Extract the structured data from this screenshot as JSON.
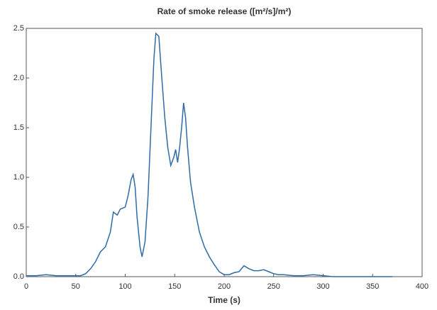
{
  "chart_data": {
    "type": "line",
    "title": "Rate of smoke release ([m²/s]/m²)",
    "x_label": "Time (s)",
    "x": [
      0,
      10,
      20,
      30,
      40,
      50,
      55,
      60,
      65,
      70,
      75,
      80,
      85,
      88,
      92,
      95,
      100,
      103,
      106,
      108,
      110,
      112,
      115,
      117,
      120,
      123,
      126,
      129,
      131,
      134,
      137,
      140,
      143,
      146,
      149,
      151,
      153,
      155,
      157,
      159,
      161,
      163,
      166,
      170,
      175,
      180,
      185,
      190,
      195,
      200,
      205,
      210,
      215,
      220,
      225,
      230,
      235,
      240,
      245,
      250,
      255,
      260,
      270,
      280,
      290,
      300,
      310,
      320,
      340,
      370
    ],
    "series": [
      {
        "name": "Rate of smoke release",
        "color": "#2e6ca8",
        "values": [
          0.01,
          0.01,
          0.02,
          0.01,
          0.01,
          0.01,
          0.01,
          0.03,
          0.08,
          0.15,
          0.25,
          0.3,
          0.45,
          0.65,
          0.62,
          0.68,
          0.7,
          0.82,
          0.98,
          1.03,
          0.9,
          0.6,
          0.3,
          0.2,
          0.35,
          0.8,
          1.5,
          2.2,
          2.45,
          2.42,
          2.0,
          1.6,
          1.3,
          1.12,
          1.2,
          1.28,
          1.15,
          1.3,
          1.5,
          1.75,
          1.6,
          1.3,
          0.95,
          0.7,
          0.45,
          0.3,
          0.2,
          0.12,
          0.05,
          0.02,
          0.02,
          0.04,
          0.05,
          0.11,
          0.08,
          0.06,
          0.06,
          0.07,
          0.05,
          0.03,
          0.02,
          0.02,
          0.01,
          0.01,
          0.02,
          0.01,
          0,
          0,
          0,
          0
        ]
      }
    ],
    "xlim": [
      0,
      400
    ],
    "xticks": [
      0,
      50,
      100,
      150,
      200,
      250,
      300,
      350,
      400
    ],
    "ylim": [
      0,
      2.5
    ],
    "yticks": [
      {
        "value": 0,
        "label": "0.0"
      },
      0.5,
      {
        "value": 1,
        "label": "1.0"
      },
      1.5,
      {
        "value": 2,
        "label": "2.0"
      },
      2.5
    ]
  }
}
